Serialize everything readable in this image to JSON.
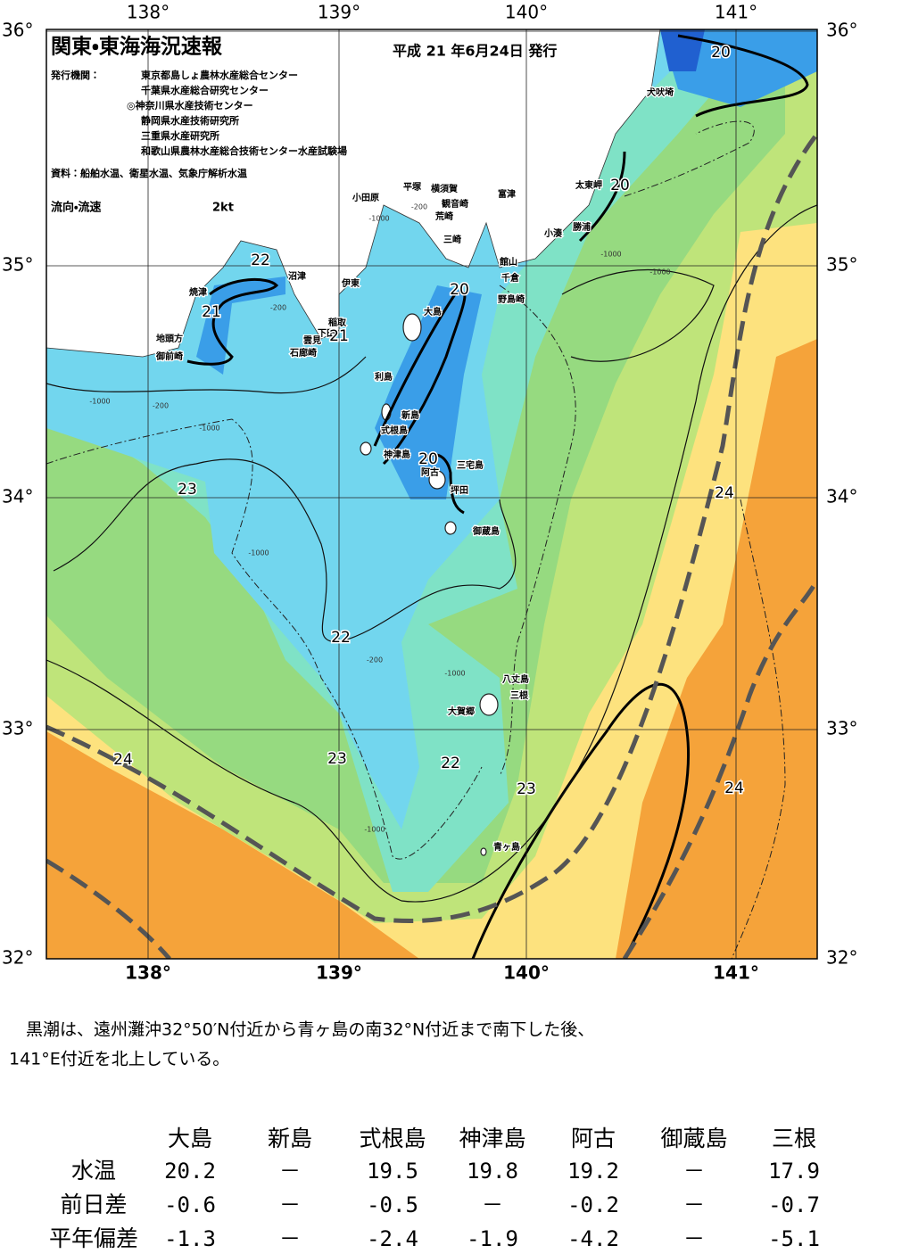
{
  "header": {
    "title": "関東・東海海況速報",
    "issue_date": "平成 21 年6月24日 発行",
    "issuer_label": "発行機関：",
    "issuers": [
      "東京都島しょ農林水産総合センター",
      "千葉県水産総合研究センター",
      "◎神奈川県水産技術センター",
      "静岡県水産技術研究所",
      "三重県水産研究所",
      "和歌山県農林水産総合技術センター水産試験場"
    ],
    "source": "資料：船舶水温、衛星水温、気象庁解析水温",
    "flow_label": "流向・流速",
    "flow_scale": "2kt"
  },
  "map": {
    "lon_labels": [
      "138°",
      "139°",
      "140°",
      "141°"
    ],
    "lat_labels": [
      "36°",
      "35°",
      "34°",
      "33°",
      "32°"
    ],
    "places": [
      "小田原",
      "平塚",
      "横須賀",
      "観音崎",
      "富津",
      "荒崎",
      "三崎",
      "館山",
      "千倉",
      "野島崎",
      "小湊",
      "勝浦",
      "太東岬",
      "犬吠埼",
      "沼津",
      "伊東",
      "稲取",
      "下田",
      "雲見",
      "石廊崎",
      "焼津",
      "地頭方",
      "御前崎",
      "大島",
      "利島",
      "新島",
      "式根島",
      "神津島",
      "三宅島",
      "阿古",
      "坪田",
      "御蔵島",
      "八丈島",
      "三根",
      "大賀郷",
      "青ヶ島"
    ],
    "contour_labels": [
      "20",
      "20",
      "22",
      "21",
      "21",
      "20",
      "20",
      "23",
      "24",
      "22",
      "23",
      "22",
      "23",
      "24",
      "24"
    ],
    "depth_labels": [
      "-1000",
      "-200",
      "-1000",
      "-200",
      "-1000",
      "-1000",
      "-200",
      "-1000",
      "-1000",
      "-200",
      "-1000",
      "-1000"
    ]
  },
  "summary": [
    "　黒潮は、遠州灘沖32°50′N付近から青ヶ島の南32°N付近まで南下した後、",
    "141°E付近を北上している。"
  ],
  "table": {
    "columns": [
      "大島",
      "新島",
      "式根島",
      "神津島",
      "阿古",
      "御蔵島",
      "三根"
    ],
    "rows": [
      {
        "label": "水温",
        "values": [
          "20.2",
          "－",
          "19.5",
          "19.8",
          "19.2",
          "－",
          "17.9"
        ]
      },
      {
        "label": "前日差",
        "values": [
          "-0.6",
          "－",
          "-0.5",
          "－",
          "-0.2",
          "－",
          "-0.7"
        ]
      },
      {
        "label": "平年偏差",
        "values": [
          "-1.3",
          "－",
          "-2.4",
          "-1.9",
          "-4.2",
          "－",
          "-5.1"
        ]
      }
    ]
  }
}
